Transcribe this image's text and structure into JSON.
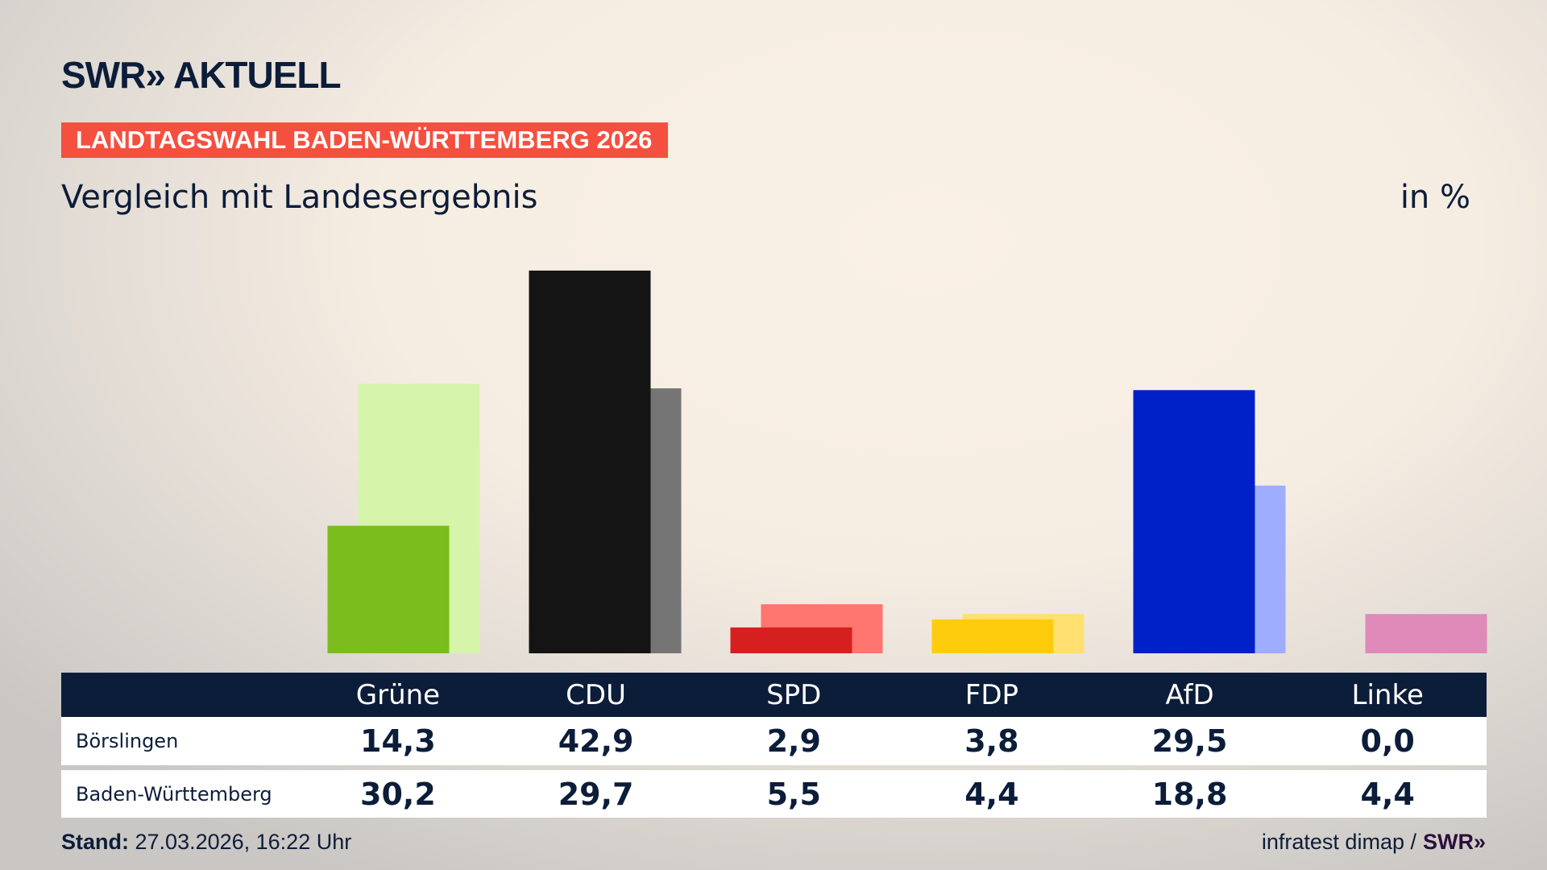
{
  "brand": {
    "logo": "SWR» AKTUELL"
  },
  "banner": "LANDTAGSWAHL BADEN-WÜRTTEMBERG 2026",
  "subtitle": "Vergleich mit Landesergebnis",
  "unit": "in %",
  "chart_data": {
    "type": "bar",
    "categories": [
      "Grüne",
      "CDU",
      "SPD",
      "FDP",
      "AfD",
      "Linke"
    ],
    "series": [
      {
        "name": "Börslingen",
        "values": [
          14.3,
          42.9,
          2.9,
          3.8,
          29.5,
          0.0
        ],
        "display": [
          "14,3",
          "42,9",
          "2,9",
          "3,8",
          "29,5",
          "0,0"
        ]
      },
      {
        "name": "Baden-Württemberg",
        "values": [
          30.2,
          29.7,
          5.5,
          4.4,
          18.8,
          4.4
        ],
        "display": [
          "30,2",
          "29,7",
          "5,5",
          "4,4",
          "18,8",
          "4,4"
        ]
      }
    ],
    "colors": {
      "Börslingen": [
        "#7abd1c",
        "#141414",
        "#d62020",
        "#ffcc0d",
        "#0020c8",
        "#bf3e86"
      ],
      "Baden-Württemberg": [
        "#d6f5ab",
        "#757575",
        "#ff7570",
        "#ffe070",
        "#9fadff",
        "#df8ab8"
      ]
    },
    "ylim": [
      0,
      46
    ],
    "grid": false
  },
  "footer": {
    "stand_label": "Stand:",
    "stand_value": "27.03.2026, 16:22 Uhr",
    "source": "infratest dimap /",
    "source_logo": "SWR»"
  }
}
